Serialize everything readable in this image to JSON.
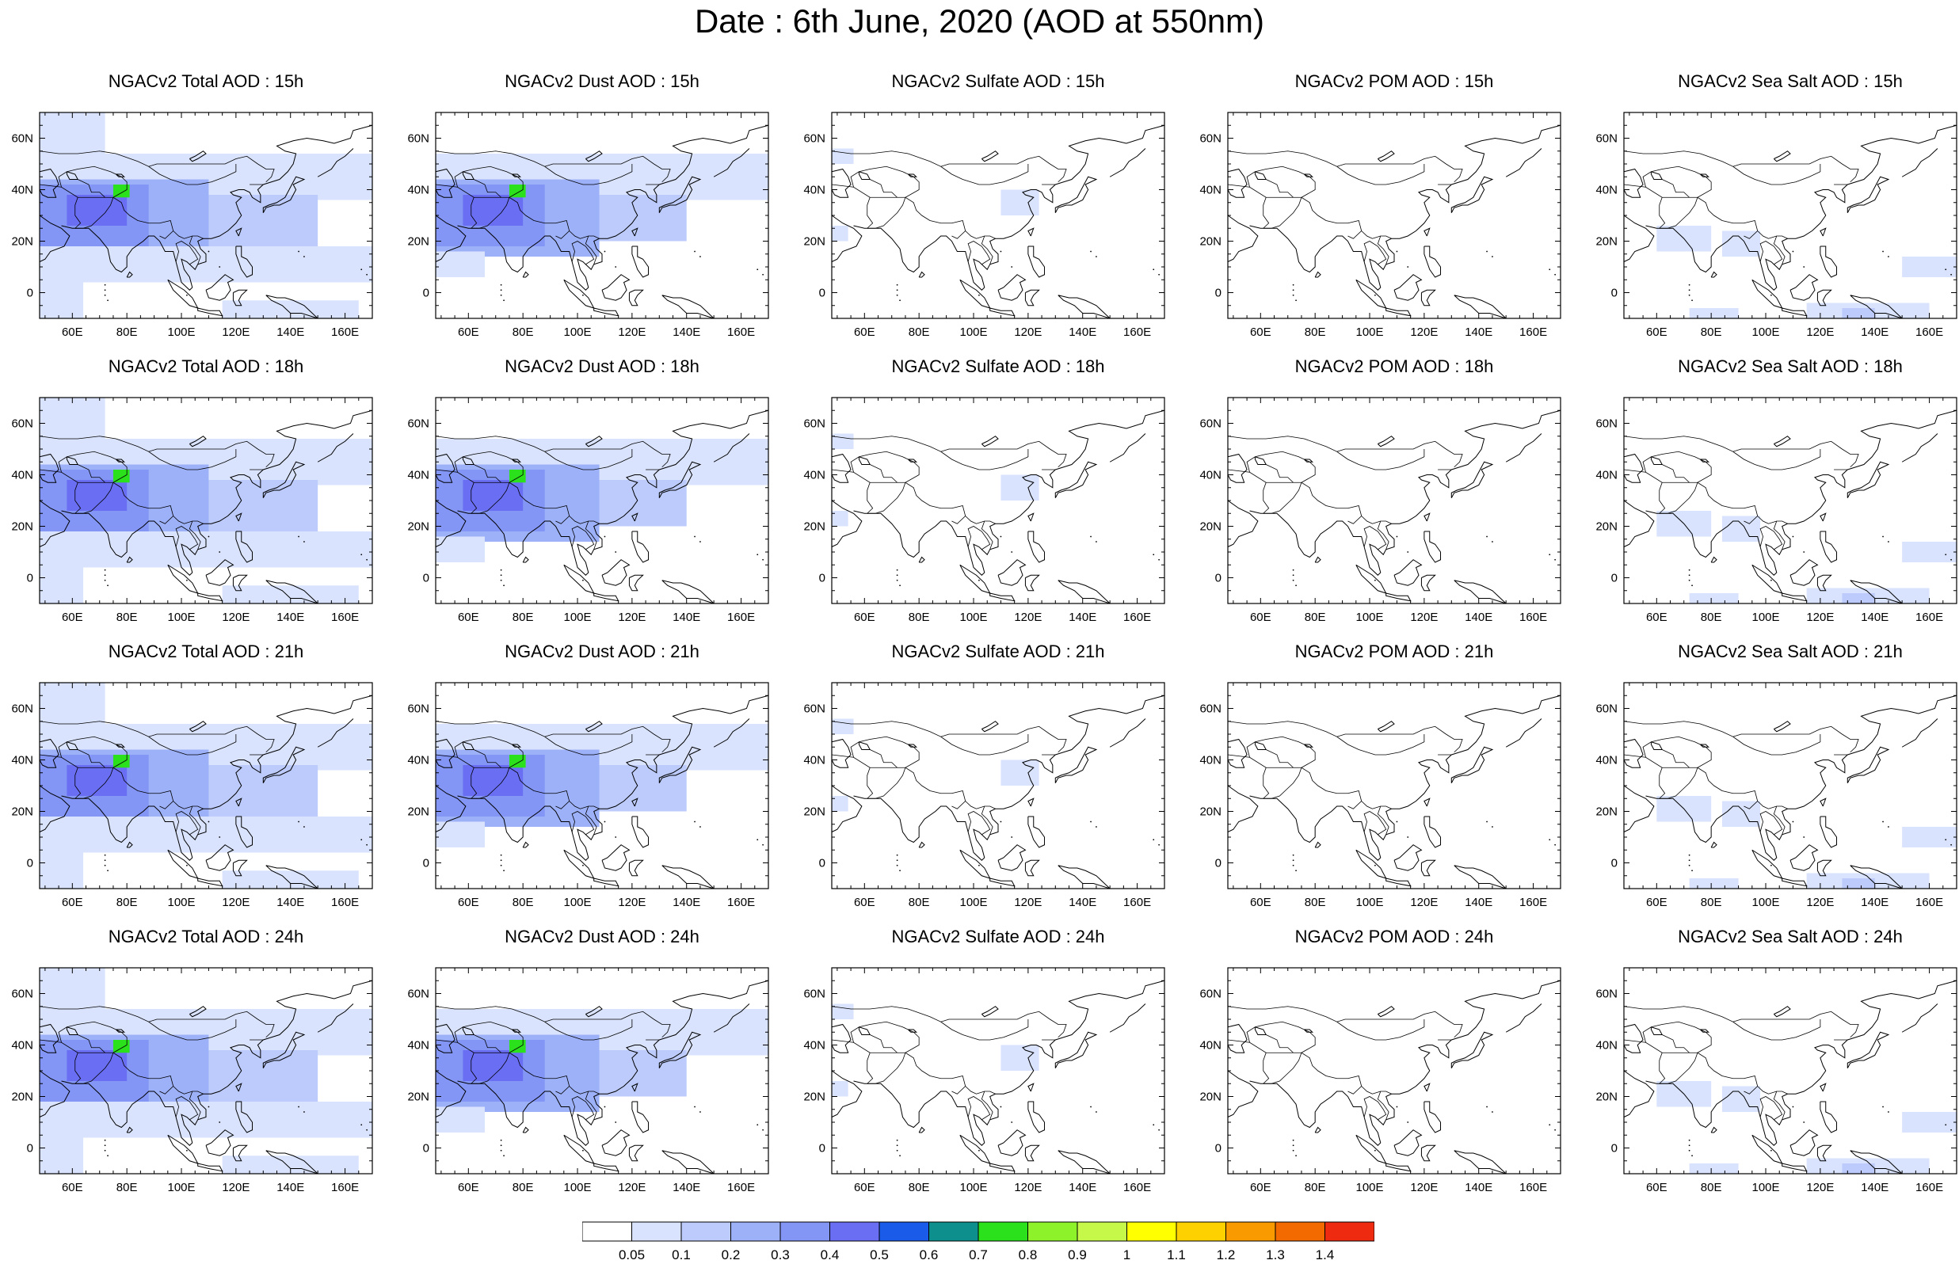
{
  "title": "Date : 6th June, 2020 (AOD at 550nm)",
  "map_extent": {
    "lon_min": 48,
    "lon_max": 170,
    "lat_min": -10,
    "lat_max": 70
  },
  "lon_ticks": [
    "60E",
    "80E",
    "100E",
    "120E",
    "140E",
    "160E"
  ],
  "lat_ticks": [
    "60N",
    "40N",
    "20N",
    "0"
  ],
  "rows": [
    {
      "hour": "15h",
      "titles": [
        "NGACv2 Total AOD : 15h",
        "NGACv2 Dust AOD : 15h",
        "NGACv2 Sulfate AOD : 15h",
        "NGACv2 POM AOD : 15h",
        "NGACv2 Sea Salt AOD : 15h"
      ]
    },
    {
      "hour": "18h",
      "titles": [
        "NGACv2 Total AOD : 18h",
        "NGACv2 Dust AOD : 18h",
        "NGACv2 Sulfate AOD : 18h",
        "NGACv2 POM AOD : 18h",
        "NGACv2 Sea Salt AOD : 18h"
      ]
    },
    {
      "hour": "21h",
      "titles": [
        "NGACv2 Total AOD : 21h",
        "NGACv2 Dust AOD : 21h",
        "NGACv2 Sulfate AOD : 21h",
        "NGACv2 POM AOD : 21h",
        "NGACv2 Sea Salt AOD : 21h"
      ]
    },
    {
      "hour": "24h",
      "titles": [
        "NGACv2 Total AOD : 24h",
        "NGACv2 Dust AOD : 24h",
        "NGACv2 Sulfate AOD : 24h",
        "NGACv2 POM AOD : 24h",
        "NGACv2 Sea Salt  AOD : 24h"
      ]
    }
  ],
  "colorbar": {
    "labels": [
      "0.05",
      "0.1",
      "0.2",
      "0.3",
      "0.4",
      "0.5",
      "0.6",
      "0.7",
      "0.8",
      "0.9",
      "1",
      "1.1",
      "1.2",
      "1.3",
      "1.4"
    ],
    "colors": [
      "#ffffff",
      "#d9e3fd",
      "#bccbfb",
      "#9db1f8",
      "#8396f5",
      "#6a6ef2",
      "#1a5bea",
      "#0d8f8d",
      "#2be11b",
      "#8ef22a",
      "#c6f84a",
      "#ffff00",
      "#fdd000",
      "#f89a00",
      "#f26a00",
      "#ee2a10"
    ]
  },
  "aod_fields": {
    "total": [
      {
        "lon": [
          48,
          72,
          72,
          48
        ],
        "lat": [
          70,
          70,
          52,
          52
        ],
        "level": 1
      },
      {
        "lon": [
          48,
          170,
          170,
          48
        ],
        "lat": [
          54,
          54,
          36,
          36
        ],
        "level": 1
      },
      {
        "lon": [
          48,
          150,
          150,
          48
        ],
        "lat": [
          38,
          38,
          16,
          16
        ],
        "level": 2
      },
      {
        "lon": [
          48,
          110,
          110,
          48
        ],
        "lat": [
          44,
          44,
          16,
          16
        ],
        "level": 3
      },
      {
        "lon": [
          48,
          88,
          88,
          48
        ],
        "lat": [
          42,
          42,
          18,
          18
        ],
        "level": 4
      },
      {
        "lon": [
          58,
          80,
          80,
          58
        ],
        "lat": [
          38,
          38,
          26,
          26
        ],
        "level": 5
      },
      {
        "lon": [
          75,
          81,
          81,
          75
        ],
        "lat": [
          42,
          42,
          37,
          37
        ],
        "level": 8
      },
      {
        "lon": [
          48,
          170,
          170,
          48
        ],
        "lat": [
          18,
          18,
          4,
          4
        ],
        "level": 1
      },
      {
        "lon": [
          48,
          64,
          64,
          48
        ],
        "lat": [
          16,
          16,
          -10,
          -10
        ],
        "level": 1
      },
      {
        "lon": [
          115,
          165,
          165,
          115
        ],
        "lat": [
          -3,
          -3,
          -10,
          -10
        ],
        "level": 1
      }
    ],
    "dust": [
      {
        "lon": [
          48,
          170,
          170,
          48
        ],
        "lat": [
          54,
          54,
          36,
          36
        ],
        "level": 1
      },
      {
        "lon": [
          48,
          140,
          140,
          48
        ],
        "lat": [
          38,
          38,
          20,
          20
        ],
        "level": 2
      },
      {
        "lon": [
          48,
          108,
          108,
          48
        ],
        "lat": [
          44,
          44,
          14,
          14
        ],
        "level": 3
      },
      {
        "lon": [
          48,
          88,
          88,
          48
        ],
        "lat": [
          42,
          42,
          18,
          18
        ],
        "level": 4
      },
      {
        "lon": [
          58,
          80,
          80,
          58
        ],
        "lat": [
          38,
          38,
          26,
          26
        ],
        "level": 5
      },
      {
        "lon": [
          75,
          81,
          81,
          75
        ],
        "lat": [
          42,
          42,
          37,
          37
        ],
        "level": 8
      },
      {
        "lon": [
          48,
          66,
          66,
          48
        ],
        "lat": [
          16,
          16,
          6,
          6
        ],
        "level": 1
      }
    ],
    "sulfate": [
      {
        "lon": [
          110,
          124,
          124,
          110
        ],
        "lat": [
          40,
          40,
          30,
          30
        ],
        "level": 1
      },
      {
        "lon": [
          48,
          56,
          56,
          48
        ],
        "lat": [
          56,
          56,
          50,
          50
        ],
        "level": 1
      },
      {
        "lon": [
          48,
          54,
          54,
          48
        ],
        "lat": [
          26,
          26,
          20,
          20
        ],
        "level": 1
      }
    ],
    "pom": [],
    "seasalt": [
      {
        "lon": [
          60,
          80,
          80,
          60
        ],
        "lat": [
          26,
          26,
          16,
          16
        ],
        "level": 1
      },
      {
        "lon": [
          84,
          98,
          98,
          84
        ],
        "lat": [
          24,
          24,
          14,
          14
        ],
        "level": 1
      },
      {
        "lon": [
          150,
          170,
          170,
          150
        ],
        "lat": [
          14,
          14,
          6,
          6
        ],
        "level": 1
      },
      {
        "lon": [
          115,
          160,
          160,
          115
        ],
        "lat": [
          -4,
          -4,
          -10,
          -10
        ],
        "level": 1
      },
      {
        "lon": [
          128,
          140,
          140,
          128
        ],
        "lat": [
          -6,
          -6,
          -10,
          -10
        ],
        "level": 2
      },
      {
        "lon": [
          72,
          90,
          90,
          72
        ],
        "lat": [
          -6,
          -6,
          -10,
          -10
        ],
        "level": 1
      }
    ]
  }
}
